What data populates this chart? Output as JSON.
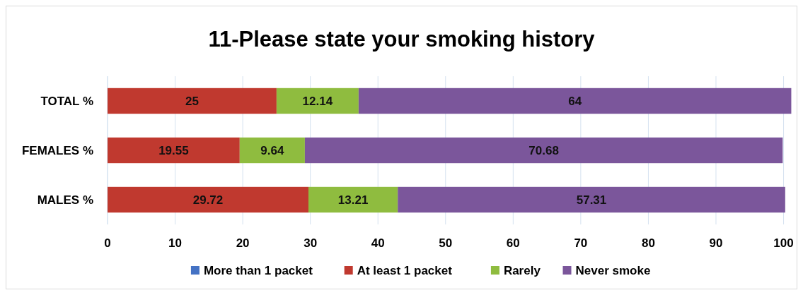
{
  "chart_data": {
    "type": "bar",
    "orientation": "horizontal",
    "stacked": true,
    "title": "11-Please state your smoking history",
    "categories": [
      "TOTAL %",
      "FEMALES %",
      "MALES %"
    ],
    "series": [
      {
        "name": "More than 1 packet",
        "color": "#4472c4",
        "values": [
          0,
          0,
          0
        ],
        "value_labels": [
          null,
          null,
          null
        ]
      },
      {
        "name": "At least 1 packet",
        "color": "#c0392f",
        "values": [
          25,
          19.55,
          29.72
        ],
        "value_labels": [
          "25",
          "19.55",
          "29.72"
        ]
      },
      {
        "name": "Rarely",
        "color": "#8fbc3f",
        "values": [
          12.14,
          9.64,
          13.21
        ],
        "value_labels": [
          "12.14",
          "9.64",
          "13.21"
        ]
      },
      {
        "name": "Never smoke",
        "color": "#7b569b",
        "values": [
          64,
          70.68,
          57.31
        ],
        "value_labels": [
          "64",
          "70.68",
          "57.31"
        ]
      }
    ],
    "xlim": [
      0,
      101.2
    ],
    "xticks": [
      0,
      10,
      20,
      30,
      40,
      50,
      60,
      70,
      80,
      90,
      100
    ],
    "grid": "x",
    "legend": "bottom"
  }
}
